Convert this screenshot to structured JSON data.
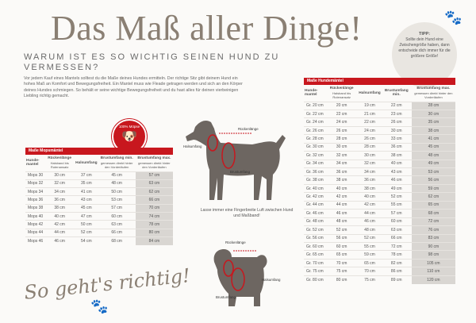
{
  "title": "Das Maß aller Dinge!",
  "subtitle": "WARUM IST ES SO WICHTIG SEINEN HUND ZU VERMESSEN?",
  "intro": "Vor jedem Kauf eines Mantels solltest du die Maße deines Hundes ermitteln. Der richtige Sitz gibt deinem Hund ein hohes Maß an Komfort und Bewegungsfreiheit. Ein Mantel muss wie Fleade getragen werden und sich an den Körper deines Hundes schmiegen. So behält er seine wichtige Bewegungsfreiheit und du hast alles für deinen vierbeinigen Liebling richtig gemacht.",
  "tipp": {
    "heading": "TIPP:",
    "text": "Sollte dein Hund eine Zwischengröße haben, dann entscheide dich immer für die größere Größe!"
  },
  "badge": "100% Möpse",
  "note": "Lasse immer eine Fingerbreite Luft zwischen Hund und Maßband!",
  "labels": {
    "rueckenlaenge": "Rückenlänge",
    "halsumfang": "Halsumfang",
    "brustumfang": "Brustumfang"
  },
  "slogan": "So geht's richtig!",
  "left_table": {
    "title": "Maße Mopsmäntel",
    "headers": [
      {
        "main": "Hunde-mantel",
        "sub": ""
      },
      {
        "main": "Rückenlänge",
        "sub": "Halsband bis Rutenansatz"
      },
      {
        "main": "Halsumfang",
        "sub": ""
      },
      {
        "main": "Brustumfang min.",
        "sub": "gemessen direkt hinter den Vorderläufen"
      },
      {
        "main": "Brustumfang max.",
        "sub": "gemessen direkt hinter den Vorderläufen"
      }
    ],
    "rows": [
      [
        "Mops 30",
        "30 cm",
        "37 cm",
        "45 cm",
        "57 cm"
      ],
      [
        "Mops 32",
        "32 cm",
        "35 cm",
        "48 cm",
        "63 cm"
      ],
      [
        "Mops 34",
        "34 cm",
        "41 cm",
        "50 cm",
        "62 cm"
      ],
      [
        "Mops 36",
        "36 cm",
        "43 cm",
        "53 cm",
        "66 cm"
      ],
      [
        "Mops 38",
        "38 cm",
        "45 cm",
        "57 cm",
        "70 cm"
      ],
      [
        "Mops 40",
        "40 cm",
        "47 cm",
        "60 cm",
        "74 cm"
      ],
      [
        "Mops 42",
        "42 cm",
        "50 cm",
        "63 cm",
        "78 cm"
      ],
      [
        "Mops 44",
        "44 cm",
        "52 cm",
        "66 cm",
        "80 cm"
      ],
      [
        "Mops 46",
        "46 cm",
        "54 cm",
        "68 cm",
        "84 cm"
      ]
    ]
  },
  "right_table": {
    "title": "Maße Hundemäntel",
    "headers": [
      {
        "main": "Hunde-mantel",
        "sub": ""
      },
      {
        "main": "Rückenlänge",
        "sub": "Halsband bis Rutenansatz"
      },
      {
        "main": "Halsumfang",
        "sub": ""
      },
      {
        "main": "Brustumfang min.",
        "sub": ""
      },
      {
        "main": "Brustumfang max.",
        "sub": "gemessen direkt hinter den Vorderläufen"
      }
    ],
    "rows": [
      [
        "Gr. 20 cm",
        "20 cm",
        "19 cm",
        "22 cm",
        "28 cm"
      ],
      [
        "Gr. 22 cm",
        "22 cm",
        "21 cm",
        "23 cm",
        "30 cm"
      ],
      [
        "Gr. 24 cm",
        "24 cm",
        "22 cm",
        "26 cm",
        "35 cm"
      ],
      [
        "Gr. 26 cm",
        "26 cm",
        "24 cm",
        "30 cm",
        "38 cm"
      ],
      [
        "Gr. 28 cm",
        "28 cm",
        "26 cm",
        "33 cm",
        "41 cm"
      ],
      [
        "Gr. 30 cm",
        "30 cm",
        "28 cm",
        "36 cm",
        "45 cm"
      ],
      [
        "Gr. 32 cm",
        "32 cm",
        "30 cm",
        "38 cm",
        "48 cm"
      ],
      [
        "Gr. 34 cm",
        "34 cm",
        "32 cm",
        "40 cm",
        "49 cm"
      ],
      [
        "Gr. 36 cm",
        "36 cm",
        "34 cm",
        "43 cm",
        "53 cm"
      ],
      [
        "Gr. 38 cm",
        "38 cm",
        "36 cm",
        "46 cm",
        "56 cm"
      ],
      [
        "Gr. 40 cm",
        "40 cm",
        "38 cm",
        "49 cm",
        "59 cm"
      ],
      [
        "Gr. 42 cm",
        "42 cm",
        "40 cm",
        "52 cm",
        "62 cm"
      ],
      [
        "Gr. 44 cm",
        "44 cm",
        "42 cm",
        "55 cm",
        "65 cm"
      ],
      [
        "Gr. 46 cm",
        "46 cm",
        "44 cm",
        "57 cm",
        "68 cm"
      ],
      [
        "Gr. 48 cm",
        "48 cm",
        "46 cm",
        "60 cm",
        "72 cm"
      ],
      [
        "Gr. 52 cm",
        "52 cm",
        "48 cm",
        "63 cm",
        "76 cm"
      ],
      [
        "Gr. 56 cm",
        "56 cm",
        "52 cm",
        "66 cm",
        "83 cm"
      ],
      [
        "Gr. 60 cm",
        "60 cm",
        "55 cm",
        "72 cm",
        "90 cm"
      ],
      [
        "Gr. 65 cm",
        "65 cm",
        "59 cm",
        "78 cm",
        "98 cm"
      ],
      [
        "Gr. 70 cm",
        "70 cm",
        "65 cm",
        "82 cm",
        "105 cm"
      ],
      [
        "Gr. 75 cm",
        "75 cm",
        "70 cm",
        "86 cm",
        "110 cm"
      ],
      [
        "Gr. 80 cm",
        "80 cm",
        "75 cm",
        "89 cm",
        "120 cm"
      ]
    ]
  }
}
